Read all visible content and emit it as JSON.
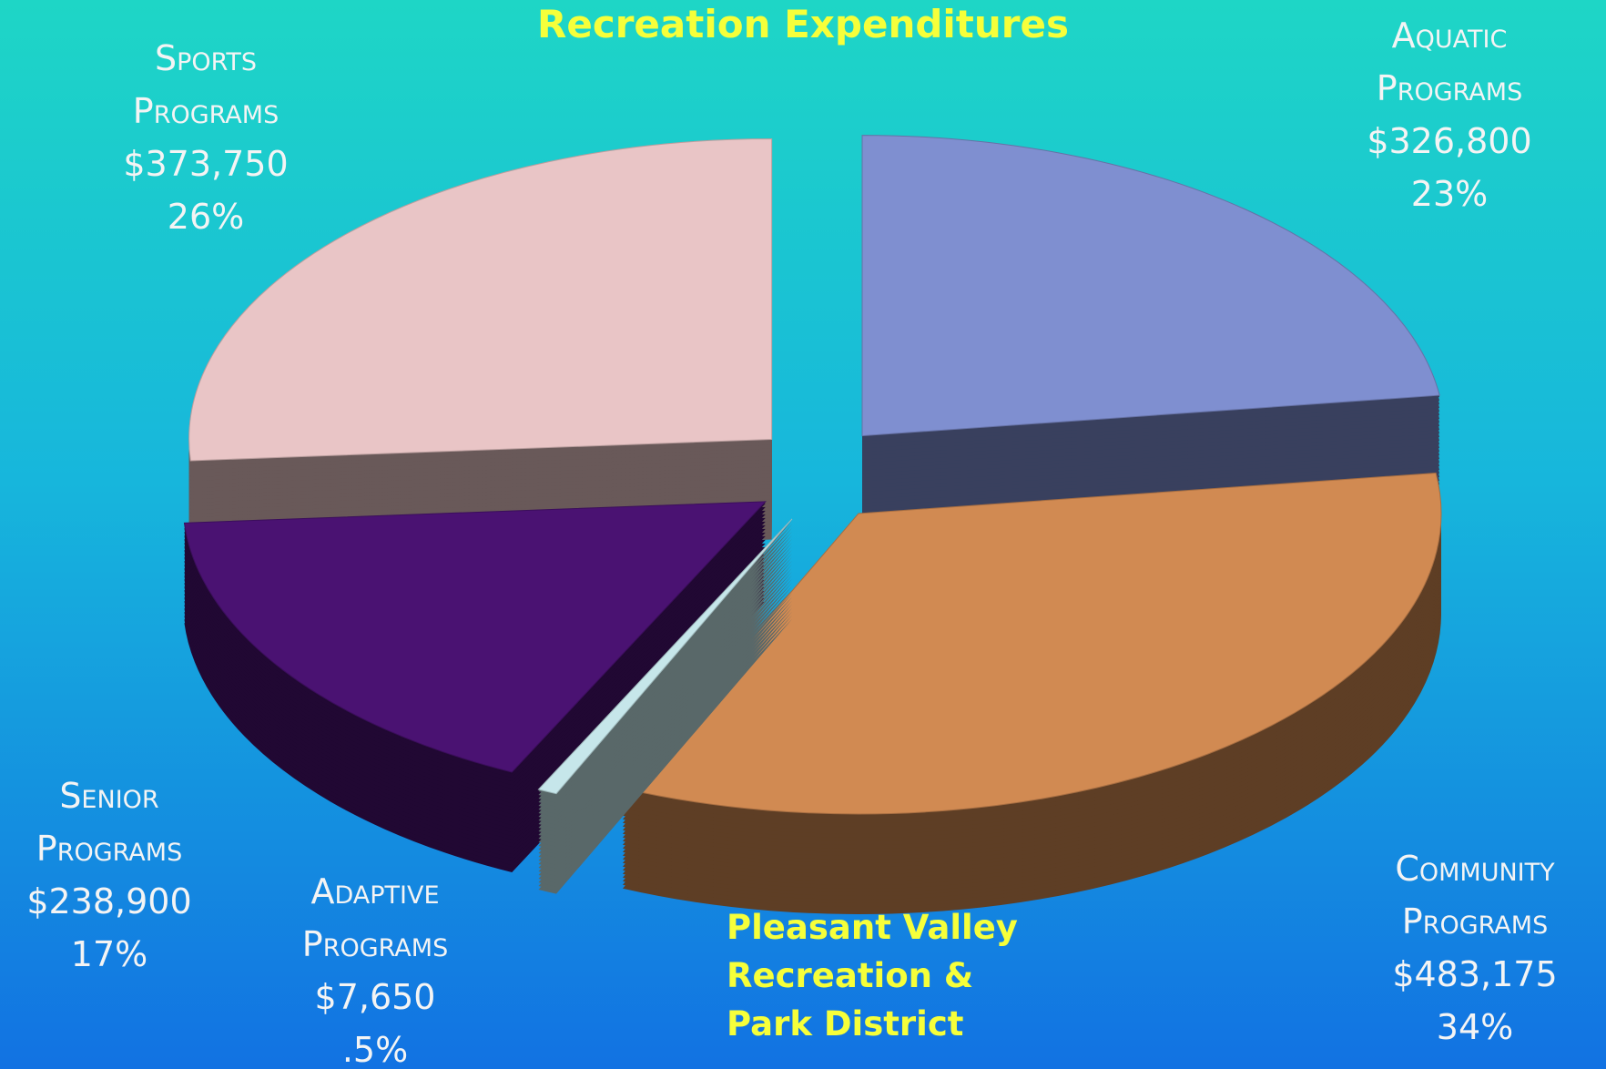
{
  "chart_data": {
    "type": "pie3d",
    "title": "Recreation Expenditures",
    "subtitle": "Pleasant Valley Recreation & Park District",
    "categories": [
      "Aquatic Programs",
      "Community Programs",
      "Adaptive Programs",
      "Senior Programs",
      "Sports Programs"
    ],
    "values": [
      326800,
      483175,
      7650,
      238900,
      373750
    ],
    "value_labels": [
      "$326,800",
      "$483,175",
      "$7,650",
      "$238,900",
      "$373,750"
    ],
    "percents": [
      23,
      34,
      0.5,
      17,
      26
    ],
    "percent_labels": [
      "23%",
      "34%",
      ".5%",
      "17%",
      "26%"
    ],
    "colors": [
      "#7f8fd0",
      "#d18a52",
      "#c6e6ea",
      "#4a1272",
      "#e9c5c6"
    ]
  }
}
